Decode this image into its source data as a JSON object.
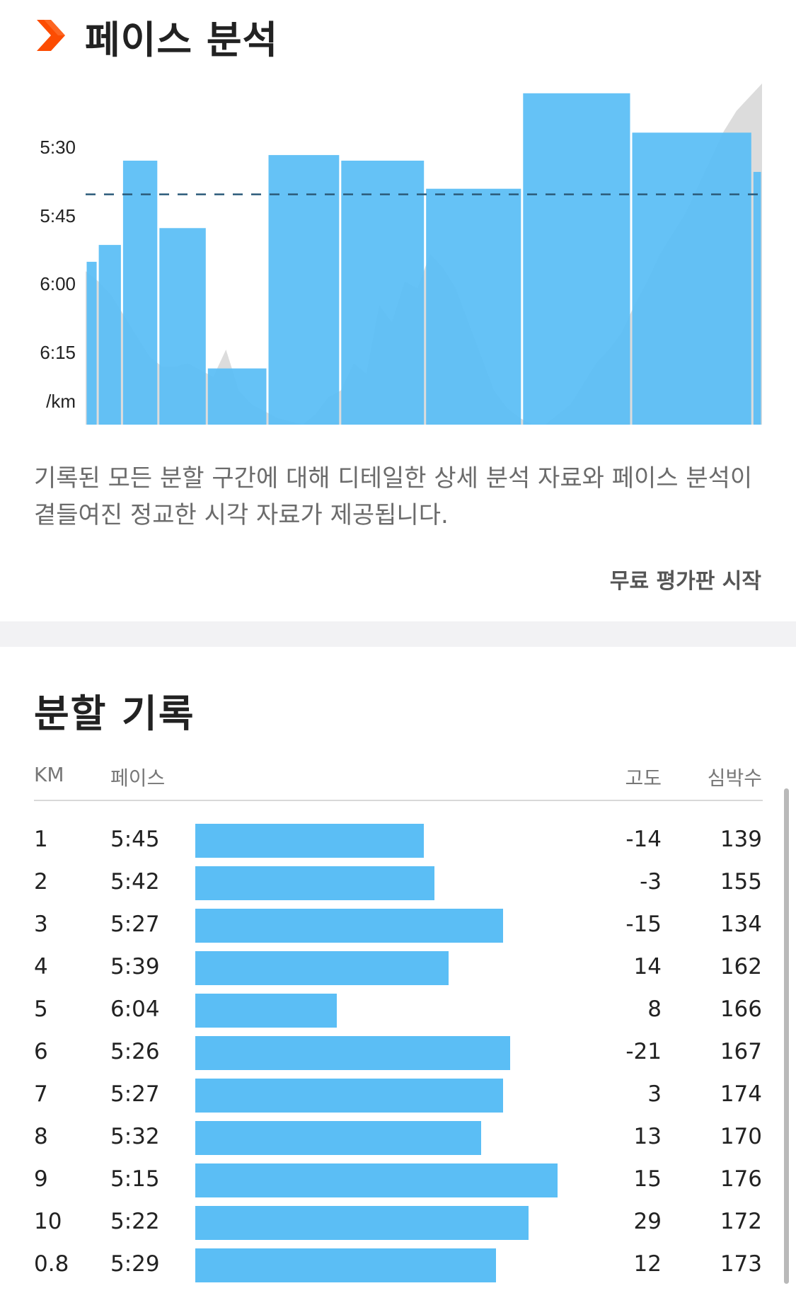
{
  "pace_analysis": {
    "title": "페이스 분석",
    "description": "기록된 모든 분할 구간에 대해 디테일한 상세 분석 자료와 페이스 분석이 곁들여진 정교한 시각 자료가 제공됩니다.",
    "trial_button_label": "무료 평가판 시작",
    "brand_icon": "chevron-right-icon",
    "accent_color": "#fc4c02"
  },
  "chart_data": {
    "type": "bar",
    "y_axis_labels": [
      "5:30",
      "5:45",
      "6:00",
      "6:15",
      "/km"
    ],
    "y_axis_unit": "/km",
    "y_axis_inverted": true,
    "categories": [
      "1",
      "2",
      "3",
      "4",
      "5",
      "6",
      "7",
      "8",
      "9",
      "10",
      "0.8"
    ],
    "pace_seconds_per_km": [
      345,
      342,
      327,
      339,
      364,
      326,
      327,
      332,
      315,
      322,
      329
    ],
    "average_pace_line": "5:33",
    "average_pace_seconds": 333,
    "ylim_seconds": [
      312,
      374
    ],
    "elevation_profile_relative": [
      0.45,
      0.42,
      0.38,
      0.32,
      0.26,
      0.2,
      0.17,
      0.17,
      0.18,
      0.16,
      0.14,
      0.22,
      0.1,
      0.06,
      0.04,
      0.02,
      0.01,
      0.0,
      0.03,
      0.08,
      0.1,
      0.18,
      0.15,
      0.35,
      0.3,
      0.42,
      0.4,
      0.5,
      0.46,
      0.4,
      0.3,
      0.2,
      0.1,
      0.05,
      0.02,
      0.0,
      0.0,
      0.03,
      0.06,
      0.12,
      0.18,
      0.22,
      0.27,
      0.35,
      0.42,
      0.5,
      0.56,
      0.62,
      0.7,
      0.78,
      0.86,
      0.92,
      0.96,
      1.0
    ],
    "bar_color": "#5bbef5",
    "elevation_color": "#dcdcdc"
  },
  "splits": {
    "title": "분할 기록",
    "headers": {
      "km": "KM",
      "pace": "페이스",
      "elevation": "고도",
      "heart_rate": "심박수"
    },
    "rows": [
      {
        "km": "1",
        "pace": "5:45",
        "pace_bar_fraction": 0.63,
        "elevation": "-14",
        "heart_rate": "139"
      },
      {
        "km": "2",
        "pace": "5:42",
        "pace_bar_fraction": 0.66,
        "elevation": "-3",
        "heart_rate": "155"
      },
      {
        "km": "3",
        "pace": "5:27",
        "pace_bar_fraction": 0.85,
        "elevation": "-15",
        "heart_rate": "134"
      },
      {
        "km": "4",
        "pace": "5:39",
        "pace_bar_fraction": 0.7,
        "elevation": "14",
        "heart_rate": "162"
      },
      {
        "km": "5",
        "pace": "6:04",
        "pace_bar_fraction": 0.39,
        "elevation": "8",
        "heart_rate": "166"
      },
      {
        "km": "6",
        "pace": "5:26",
        "pace_bar_fraction": 0.87,
        "elevation": "-21",
        "heart_rate": "167"
      },
      {
        "km": "7",
        "pace": "5:27",
        "pace_bar_fraction": 0.85,
        "elevation": "3",
        "heart_rate": "174"
      },
      {
        "km": "8",
        "pace": "5:32",
        "pace_bar_fraction": 0.79,
        "elevation": "13",
        "heart_rate": "170"
      },
      {
        "km": "9",
        "pace": "5:15",
        "pace_bar_fraction": 1.0,
        "elevation": "15",
        "heart_rate": "176"
      },
      {
        "km": "10",
        "pace": "5:22",
        "pace_bar_fraction": 0.92,
        "elevation": "29",
        "heart_rate": "172"
      },
      {
        "km": "0.8",
        "pace": "5:29",
        "pace_bar_fraction": 0.83,
        "elevation": "12",
        "heart_rate": "173"
      }
    ]
  }
}
